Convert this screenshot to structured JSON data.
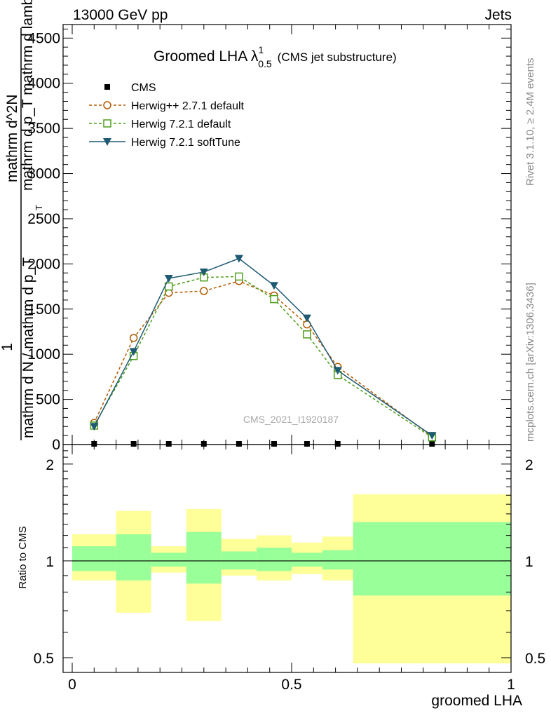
{
  "header": {
    "left": "13000 GeV pp",
    "right": "Jets"
  },
  "side": {
    "rivet": "Rivet 3.1.10, ≥ 2.4M events",
    "mcplots": "mcplots.cern.ch [arXiv:1306.3436]"
  },
  "title": {
    "main": "Groomed LHA λ",
    "sup": "1",
    "sub": "0.5",
    "note": "(CMS jet substructure)"
  },
  "watermark": "CMS_2021_I1920187",
  "ylabel_main": {
    "one": "1",
    "den": "mathrm d N / mathrm d p_T",
    "num_top": "mathrm d^2N",
    "num_bottom": "mathrm d p_T mathrm d lambda",
    "t_sub": "T"
  },
  "ylabel_ratio": "Ratio to CMS",
  "xlabel": "groomed LHA",
  "colors": {
    "cms": "#000000",
    "herwigpp": "#b35900",
    "herwig721": "#4d9e1a",
    "softtune": "#1f5a73",
    "band_outer": "#ffff99",
    "band_inner": "#99ff99"
  },
  "chart_data": [
    {
      "type": "line",
      "panel": "main",
      "xlim": [
        0,
        1
      ],
      "ylim": [
        0,
        4650
      ],
      "yticks": [
        0,
        500,
        1000,
        1500,
        2000,
        2500,
        3000,
        3500,
        4000,
        4500
      ],
      "ytick_labels": [
        "0",
        "500",
        "1000",
        "1500",
        "2000",
        "2500",
        "3000",
        "3500",
        "4000",
        "4500"
      ],
      "legend_position": "top-left",
      "series": [
        {
          "name": "CMS",
          "marker": "square",
          "x": [
            0.05,
            0.14,
            0.22,
            0.3,
            0.38,
            0.46,
            0.535,
            0.605,
            0.82
          ],
          "y": [
            0,
            0,
            0,
            0,
            0,
            0,
            0,
            0,
            0
          ]
        },
        {
          "name": "Herwig++ 2.7.1 default",
          "marker": "circle",
          "x": [
            0.05,
            0.14,
            0.22,
            0.3,
            0.38,
            0.46,
            0.535,
            0.605,
            0.82
          ],
          "y": [
            240,
            1180,
            1680,
            1700,
            1810,
            1650,
            1330,
            860,
            90
          ]
        },
        {
          "name": "Herwig 7.2.1 default",
          "marker": "open-square",
          "x": [
            0.05,
            0.14,
            0.22,
            0.3,
            0.38,
            0.46,
            0.535,
            0.605,
            0.82
          ],
          "y": [
            210,
            980,
            1750,
            1850,
            1860,
            1610,
            1220,
            770,
            80
          ]
        },
        {
          "name": "Herwig 7.2.1 softTune",
          "marker": "down-triangle",
          "x": [
            0.05,
            0.14,
            0.22,
            0.3,
            0.38,
            0.46,
            0.535,
            0.605,
            0.82
          ],
          "y": [
            200,
            1030,
            1840,
            1910,
            2060,
            1760,
            1400,
            820,
            100
          ]
        }
      ]
    },
    {
      "type": "area",
      "panel": "ratio",
      "xlim": [
        0,
        1
      ],
      "ylim": [
        0.45,
        2.3
      ],
      "log_y": true,
      "xticks": [
        0,
        0.5,
        1
      ],
      "xtick_labels": [
        "0",
        "0.5",
        "1"
      ],
      "yticks": [
        0.5,
        1,
        2
      ],
      "ytick_labels": [
        "0.5",
        "1",
        "2"
      ],
      "bins": [
        {
          "x0": 0.0,
          "x1": 0.1,
          "inner": [
            0.93,
            1.11
          ],
          "outer": [
            0.87,
            1.21
          ]
        },
        {
          "x0": 0.1,
          "x1": 0.18,
          "inner": [
            0.87,
            1.21
          ],
          "outer": [
            0.69,
            1.43
          ]
        },
        {
          "x0": 0.18,
          "x1": 0.26,
          "inner": [
            0.96,
            1.06
          ],
          "outer": [
            0.92,
            1.11
          ]
        },
        {
          "x0": 0.26,
          "x1": 0.34,
          "inner": [
            0.85,
            1.23
          ],
          "outer": [
            0.65,
            1.45
          ]
        },
        {
          "x0": 0.34,
          "x1": 0.42,
          "inner": [
            0.94,
            1.07
          ],
          "outer": [
            0.9,
            1.17
          ]
        },
        {
          "x0": 0.42,
          "x1": 0.5,
          "inner": [
            0.93,
            1.1
          ],
          "outer": [
            0.87,
            1.2
          ]
        },
        {
          "x0": 0.5,
          "x1": 0.57,
          "inner": [
            0.96,
            1.06
          ],
          "outer": [
            0.91,
            1.14
          ]
        },
        {
          "x0": 0.57,
          "x1": 0.64,
          "inner": [
            0.94,
            1.08
          ],
          "outer": [
            0.87,
            1.19
          ]
        },
        {
          "x0": 0.64,
          "x1": 1.0,
          "inner": [
            0.78,
            1.32
          ],
          "outer": [
            0.48,
            1.61
          ]
        }
      ]
    }
  ]
}
